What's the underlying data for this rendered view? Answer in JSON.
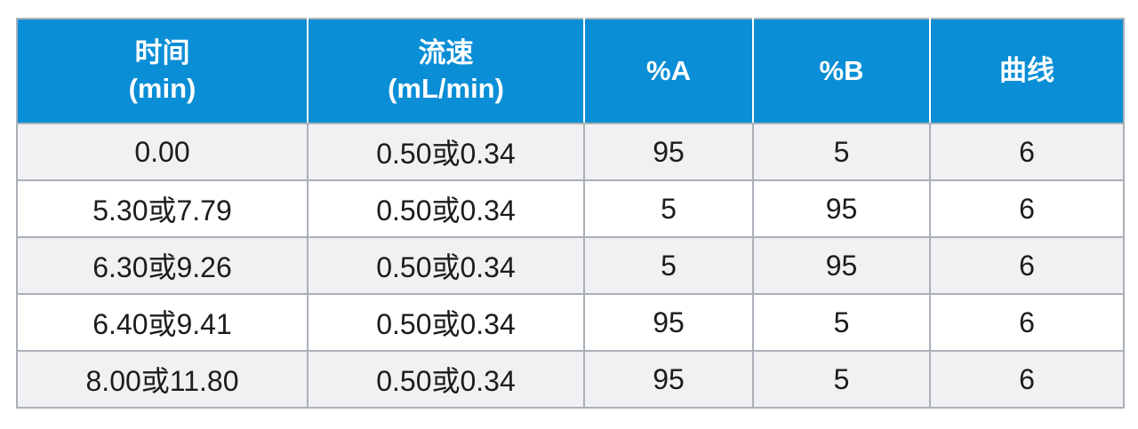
{
  "table": {
    "headers": [
      {
        "line1": "时间",
        "line2": "(min)"
      },
      {
        "line1": "流速",
        "line2": "(mL/min)"
      },
      {
        "line1": "%A",
        "line2": ""
      },
      {
        "line1": "%B",
        "line2": ""
      },
      {
        "line1": "曲线",
        "line2": ""
      }
    ],
    "rows": [
      [
        "0.00",
        "0.50或0.34",
        "95",
        "5",
        "6"
      ],
      [
        "5.30或7.79",
        "0.50或0.34",
        "5",
        "95",
        "6"
      ],
      [
        "6.30或9.26",
        "0.50或0.34",
        "5",
        "95",
        "6"
      ],
      [
        "6.40或9.41",
        "0.50或0.34",
        "95",
        "5",
        "6"
      ],
      [
        "8.00或11.80",
        "0.50或0.34",
        "95",
        "5",
        "6"
      ]
    ]
  },
  "colors": {
    "header_bg": "#0a8ed6",
    "header_text": "#ffffff",
    "row_alt_bg": "#f1f1f3",
    "border": "#a9b0b8"
  }
}
